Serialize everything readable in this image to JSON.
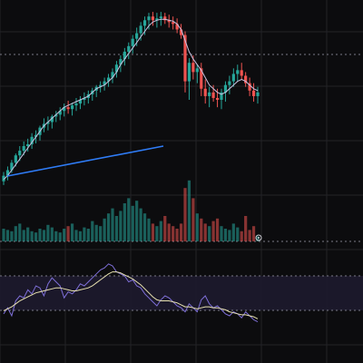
{
  "theme": {
    "background": "#0c0c0e",
    "grid": "#232327",
    "up_color": "#26a69a",
    "down_color": "#ef5350",
    "trendline_color": "#2f7cf6",
    "ma_color": "#c9c2e0",
    "rsi_band_fill": "#1d1a2e",
    "rsi_line_color": "#7e6fd8",
    "rsi_ma_color": "#e8e2b0",
    "dotted_line_color": "#7a7a85"
  },
  "icons": {
    "volume_marker": "circle-marker-icon"
  },
  "chart_data": [
    {
      "type": "candlestick",
      "ohlc": [
        [
          188,
          192,
          178,
          182
        ],
        [
          182,
          187,
          172,
          176
        ],
        [
          176,
          179,
          165,
          168
        ],
        [
          168,
          172,
          158,
          160
        ],
        [
          160,
          166,
          150,
          155
        ],
        [
          155,
          160,
          145,
          150
        ],
        [
          150,
          156,
          142,
          148
        ],
        [
          148,
          153,
          136,
          140
        ],
        [
          140,
          147,
          133,
          138
        ],
        [
          138,
          144,
          128,
          130
        ],
        [
          130,
          135,
          120,
          126
        ],
        [
          126,
          133,
          118,
          124
        ],
        [
          124,
          131,
          116,
          118
        ],
        [
          118,
          124,
          112,
          116
        ],
        [
          116,
          122,
          108,
          112
        ],
        [
          112,
          118,
          104,
          108
        ],
        [
          108,
          115,
          101,
          110
        ],
        [
          110,
          117,
          103,
          106
        ],
        [
          106,
          112,
          98,
          104
        ],
        [
          104,
          110,
          96,
          100
        ],
        [
          100,
          106,
          92,
          98
        ],
        [
          98,
          104,
          90,
          94
        ],
        [
          94,
          101,
          87,
          90
        ],
        [
          90,
          97,
          84,
          86
        ],
        [
          86,
          92,
          80,
          84
        ],
        [
          84,
          90,
          76,
          80
        ],
        [
          80,
          86,
          72,
          76
        ],
        [
          76,
          82,
          66,
          70
        ],
        [
          70,
          76,
          58,
          62
        ],
        [
          62,
          70,
          52,
          56
        ],
        [
          56,
          63,
          44,
          48
        ],
        [
          48,
          56,
          38,
          42
        ],
        [
          42,
          50,
          30,
          34
        ],
        [
          34,
          42,
          22,
          28
        ],
        [
          28,
          36,
          16,
          20
        ],
        [
          20,
          30,
          10,
          14
        ],
        [
          14,
          24,
          6,
          10
        ],
        [
          10,
          20,
          5,
          14
        ],
        [
          14,
          22,
          6,
          12
        ],
        [
          12,
          20,
          5,
          10
        ],
        [
          10,
          18,
          6,
          14
        ],
        [
          14,
          22,
          8,
          16
        ],
        [
          16,
          24,
          10,
          18
        ],
        [
          18,
          28,
          12,
          24
        ],
        [
          24,
          34,
          18,
          30
        ],
        [
          30,
          92,
          26,
          80
        ],
        [
          80,
          100,
          55,
          60
        ],
        [
          60,
          78,
          52,
          70
        ],
        [
          70,
          82,
          62,
          66
        ],
        [
          66,
          96,
          60,
          88
        ],
        [
          88,
          104,
          78,
          96
        ],
        [
          96,
          108,
          86,
          92
        ],
        [
          92,
          102,
          84,
          98
        ],
        [
          98,
          108,
          88,
          100
        ],
        [
          100,
          110,
          88,
          92
        ],
        [
          92,
          102,
          80,
          84
        ],
        [
          84,
          94,
          74,
          80
        ],
        [
          80,
          86,
          66,
          72
        ],
        [
          72,
          80,
          62,
          68
        ],
        [
          68,
          78,
          60,
          74
        ],
        [
          74,
          86,
          70,
          82
        ],
        [
          82,
          96,
          76,
          90
        ],
        [
          90,
          102,
          82,
          96
        ],
        [
          96,
          104,
          86,
          92
        ]
      ],
      "volume": [
        10,
        9,
        8,
        12,
        14,
        9,
        11,
        8,
        7,
        10,
        9,
        13,
        11,
        8,
        7,
        10,
        12,
        14,
        9,
        8,
        11,
        10,
        16,
        13,
        12,
        18,
        22,
        26,
        20,
        24,
        30,
        34,
        28,
        32,
        26,
        22,
        18,
        14,
        12,
        16,
        20,
        14,
        12,
        10,
        14,
        42,
        48,
        34,
        22,
        18,
        14,
        12,
        16,
        18,
        12,
        10,
        9,
        14,
        11,
        8,
        20,
        9,
        12,
        4
      ],
      "moving_average": [
        186,
        182,
        176,
        170,
        164,
        158,
        152,
        146,
        140,
        134,
        128,
        124,
        120,
        116,
        112,
        108,
        106,
        104,
        102,
        100,
        98,
        96,
        92,
        88,
        86,
        84,
        80,
        76,
        70,
        62,
        56,
        50,
        44,
        38,
        32,
        26,
        20,
        16,
        14,
        13,
        13,
        14,
        15,
        18,
        24,
        36,
        48,
        56,
        62,
        68,
        76,
        84,
        88,
        92,
        94,
        92,
        88,
        84,
        80,
        78,
        80,
        84,
        88,
        90
      ],
      "rsi": [
        42,
        48,
        40,
        55,
        60,
        58,
        66,
        62,
        70,
        68,
        60,
        72,
        78,
        74,
        70,
        58,
        64,
        62,
        66,
        72,
        70,
        74,
        78,
        82,
        86,
        88,
        92,
        90,
        84,
        82,
        80,
        74,
        76,
        70,
        68,
        62,
        58,
        54,
        50,
        56,
        60,
        58,
        54,
        50,
        48,
        44,
        52,
        48,
        44,
        56,
        60,
        52,
        48,
        50,
        46,
        42,
        40,
        44,
        42,
        38,
        44,
        40,
        36,
        34
      ],
      "rsi_ma": [
        45,
        47,
        49,
        52,
        55,
        57,
        59,
        61,
        63,
        64,
        65,
        66,
        67,
        68,
        68,
        67,
        66,
        65,
        65,
        66,
        67,
        68,
        70,
        73,
        76,
        79,
        82,
        84,
        84,
        83,
        81,
        79,
        77,
        74,
        71,
        67,
        63,
        59,
        56,
        55,
        55,
        55,
        54,
        53,
        51,
        49,
        49,
        48,
        47,
        48,
        49,
        49,
        48,
        48,
        47,
        46,
        44,
        43,
        42,
        41,
        41,
        40,
        39,
        37
      ]
    }
  ]
}
